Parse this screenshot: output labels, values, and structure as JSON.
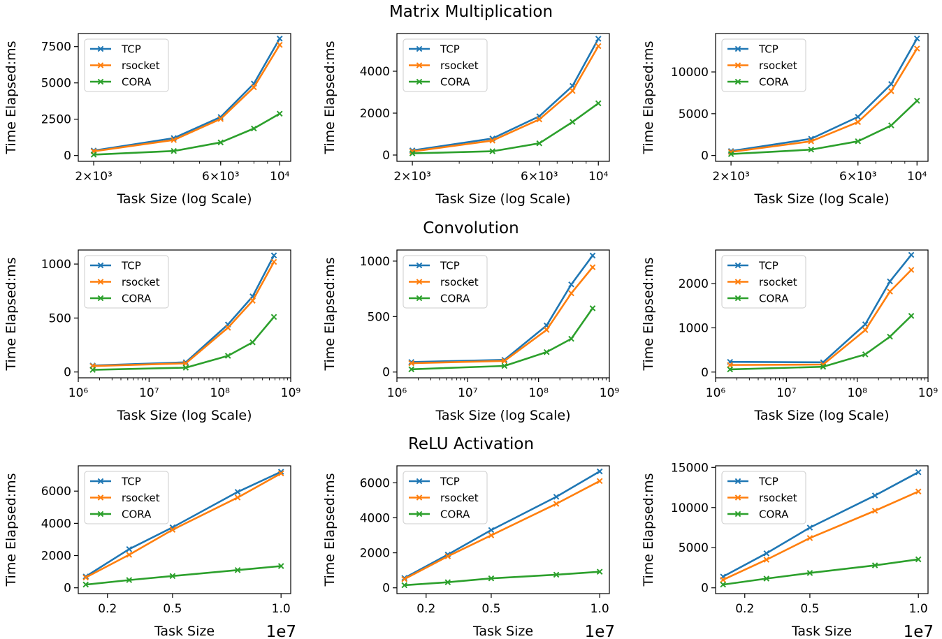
{
  "row_titles": [
    "Matrix Multiplication",
    "Convolution",
    "ReLU Activation"
  ],
  "colors": {
    "TCP": "#1f77b4",
    "rsocket": "#ff7f0e",
    "CORA": "#2ca02c"
  },
  "chart_data": [
    {
      "type": "line",
      "row": 0,
      "col": 0,
      "xscale": "log",
      "xlim": [
        1750,
        11000
      ],
      "ylim": [
        -400,
        8400
      ],
      "xticks": [
        {
          "v": 2000,
          "label": "2×10³"
        },
        {
          "v": 6000,
          "label": "6×10³"
        },
        {
          "v": 10000,
          "label": "10⁴"
        }
      ],
      "yticks": [
        {
          "v": 0,
          "label": "0"
        },
        {
          "v": 2500,
          "label": "2500"
        },
        {
          "v": 5000,
          "label": "5000"
        },
        {
          "v": 7500,
          "label": "7500"
        }
      ],
      "xlabel": "Task Size (log Scale)",
      "ylabel": "Time Elapsed:ms",
      "legend": "top-left",
      "x": [
        2000,
        4000,
        6000,
        8000,
        10000
      ],
      "series": [
        {
          "name": "TCP",
          "values": [
            340,
            1200,
            2650,
            4950,
            8050
          ]
        },
        {
          "name": "rsocket",
          "values": [
            290,
            1070,
            2520,
            4700,
            7620
          ]
        },
        {
          "name": "CORA",
          "values": [
            60,
            310,
            900,
            1860,
            2880
          ]
        }
      ]
    },
    {
      "type": "line",
      "row": 0,
      "col": 1,
      "xscale": "log",
      "xlim": [
        1750,
        11000
      ],
      "ylim": [
        -300,
        5800
      ],
      "xticks": [
        {
          "v": 2000,
          "label": "2×10³"
        },
        {
          "v": 6000,
          "label": "6×10³"
        },
        {
          "v": 10000,
          "label": "10⁴"
        }
      ],
      "yticks": [
        {
          "v": 0,
          "label": "0"
        },
        {
          "v": 2000,
          "label": "2000"
        },
        {
          "v": 4000,
          "label": "4000"
        }
      ],
      "xlabel": "Task Size (log Scale)",
      "ylabel": "Time Elapsed:ms",
      "legend": "top-left",
      "x": [
        2000,
        4000,
        6000,
        8000,
        10000
      ],
      "series": [
        {
          "name": "TCP",
          "values": [
            220,
            790,
            1850,
            3300,
            5550
          ]
        },
        {
          "name": "rsocket",
          "values": [
            170,
            690,
            1700,
            3060,
            5200
          ]
        },
        {
          "name": "CORA",
          "values": [
            80,
            180,
            560,
            1580,
            2470
          ]
        }
      ]
    },
    {
      "type": "line",
      "row": 0,
      "col": 2,
      "xscale": "log",
      "xlim": [
        1750,
        11000
      ],
      "ylim": [
        -700,
        14600
      ],
      "xticks": [
        {
          "v": 2000,
          "label": "2×10³"
        },
        {
          "v": 6000,
          "label": "6×10³"
        },
        {
          "v": 10000,
          "label": "10⁴"
        }
      ],
      "yticks": [
        {
          "v": 0,
          "label": "0"
        },
        {
          "v": 5000,
          "label": "5000"
        },
        {
          "v": 10000,
          "label": "10000"
        }
      ],
      "xlabel": "Task Size (log Scale)",
      "ylabel": "Time Elapsed:ms",
      "legend": "top-left",
      "x": [
        2000,
        4000,
        6000,
        8000,
        10000
      ],
      "series": [
        {
          "name": "TCP",
          "values": [
            530,
            2000,
            4620,
            8550,
            14000
          ]
        },
        {
          "name": "rsocket",
          "values": [
            420,
            1700,
            4000,
            7700,
            12800
          ]
        },
        {
          "name": "CORA",
          "values": [
            170,
            700,
            1700,
            3600,
            6550
          ]
        }
      ]
    },
    {
      "type": "line",
      "row": 1,
      "col": 0,
      "xscale": "log",
      "xlim": [
        1000000,
        1000000000
      ],
      "ylim": [
        -54,
        1130
      ],
      "xticks": [
        {
          "v": 1000000,
          "label": "10⁶"
        },
        {
          "v": 10000000,
          "label": "10⁷"
        },
        {
          "v": 100000000,
          "label": "10⁸"
        },
        {
          "v": 1000000000,
          "label": "10⁹"
        }
      ],
      "yticks": [
        {
          "v": 0,
          "label": "0"
        },
        {
          "v": 500,
          "label": "500"
        },
        {
          "v": 1000,
          "label": "1000"
        }
      ],
      "xlabel": "Task Size (log Scale)",
      "ylabel": "Time Elapsed:ms",
      "legend": "top-left",
      "x": [
        1600000,
        33000000,
        130000000,
        290000000,
        580000000
      ],
      "series": [
        {
          "name": "TCP",
          "values": [
            60,
            90,
            440,
            700,
            1080
          ]
        },
        {
          "name": "rsocket",
          "values": [
            55,
            80,
            410,
            660,
            1020
          ]
        },
        {
          "name": "CORA",
          "values": [
            20,
            40,
            150,
            275,
            510
          ]
        }
      ]
    },
    {
      "type": "line",
      "row": 1,
      "col": 1,
      "xscale": "log",
      "xlim": [
        1000000,
        1000000000
      ],
      "ylim": [
        -52,
        1100
      ],
      "xticks": [
        {
          "v": 1000000,
          "label": "10⁶"
        },
        {
          "v": 10000000,
          "label": "10⁷"
        },
        {
          "v": 100000000,
          "label": "10⁸"
        },
        {
          "v": 1000000000,
          "label": "10⁹"
        }
      ],
      "yticks": [
        {
          "v": 0,
          "label": "0"
        },
        {
          "v": 500,
          "label": "500"
        },
        {
          "v": 1000,
          "label": "1000"
        }
      ],
      "xlabel": "Task Size (log Scale)",
      "ylabel": "Time Elapsed:ms",
      "legend": "top-left",
      "x": [
        1600000,
        33000000,
        130000000,
        290000000,
        580000000
      ],
      "series": [
        {
          "name": "TCP",
          "values": [
            90,
            110,
            420,
            790,
            1050
          ]
        },
        {
          "name": "rsocket",
          "values": [
            80,
            100,
            380,
            710,
            945
          ]
        },
        {
          "name": "CORA",
          "values": [
            25,
            55,
            180,
            300,
            575
          ]
        }
      ]
    },
    {
      "type": "line",
      "row": 1,
      "col": 2,
      "xscale": "log",
      "xlim": [
        1000000,
        1000000000
      ],
      "ylim": [
        -130,
        2760
      ],
      "xticks": [
        {
          "v": 1000000,
          "label": "10⁶"
        },
        {
          "v": 10000000,
          "label": "10⁷"
        },
        {
          "v": 100000000,
          "label": "10⁸"
        },
        {
          "v": 1000000000,
          "label": "10⁹"
        }
      ],
      "yticks": [
        {
          "v": 0,
          "label": "0"
        },
        {
          "v": 1000,
          "label": "1000"
        },
        {
          "v": 2000,
          "label": "2000"
        }
      ],
      "xlabel": "Task Size (log Scale)",
      "ylabel": "Time Elapsed:ms",
      "legend": "top-left",
      "x": [
        1600000,
        33000000,
        130000000,
        290000000,
        580000000
      ],
      "series": [
        {
          "name": "TCP",
          "values": [
            230,
            220,
            1080,
            2050,
            2650
          ]
        },
        {
          "name": "rsocket",
          "values": [
            160,
            170,
            950,
            1820,
            2310
          ]
        },
        {
          "name": "CORA",
          "values": [
            60,
            120,
            400,
            800,
            1270
          ]
        }
      ]
    },
    {
      "type": "line",
      "row": 2,
      "col": 0,
      "xscale": "linear",
      "offset_text": "1e7",
      "xlim": [
        0.0655,
        1.0445
      ],
      "ylim": [
        -360,
        7570
      ],
      "xticks": [
        {
          "v": 0.2,
          "label": "0.2"
        },
        {
          "v": 0.5,
          "label": "0.5"
        },
        {
          "v": 1.0,
          "label": "1.0"
        }
      ],
      "yticks": [
        {
          "v": 0,
          "label": "0"
        },
        {
          "v": 2000,
          "label": "2000"
        },
        {
          "v": 4000,
          "label": "4000"
        },
        {
          "v": 6000,
          "label": "6000"
        }
      ],
      "xlabel": "Task Size",
      "ylabel": "Time Elapsed:ms",
      "legend": "top-left",
      "x": [
        0.1,
        0.3,
        0.5,
        0.8,
        1.0
      ],
      "series": [
        {
          "name": "TCP",
          "values": [
            700,
            2400,
            3750,
            5950,
            7200
          ]
        },
        {
          "name": "rsocket",
          "values": [
            640,
            2050,
            3600,
            5600,
            7100
          ]
        },
        {
          "name": "CORA",
          "values": [
            200,
            480,
            730,
            1100,
            1350
          ]
        }
      ]
    },
    {
      "type": "line",
      "row": 2,
      "col": 1,
      "xscale": "linear",
      "offset_text": "1e7",
      "xlim": [
        0.0655,
        1.0445
      ],
      "ylim": [
        -330,
        6970
      ],
      "xticks": [
        {
          "v": 0.2,
          "label": "0.2"
        },
        {
          "v": 0.5,
          "label": "0.5"
        },
        {
          "v": 1.0,
          "label": "1.0"
        }
      ],
      "yticks": [
        {
          "v": 0,
          "label": "0"
        },
        {
          "v": 2000,
          "label": "2000"
        },
        {
          "v": 4000,
          "label": "4000"
        },
        {
          "v": 6000,
          "label": "6000"
        }
      ],
      "xlabel": "Task Size",
      "ylabel": "Time Elapsed:ms",
      "legend": "top-left",
      "x": [
        0.1,
        0.3,
        0.5,
        0.8,
        1.0
      ],
      "series": [
        {
          "name": "TCP",
          "values": [
            560,
            1900,
            3300,
            5200,
            6650
          ]
        },
        {
          "name": "rsocket",
          "values": [
            500,
            1800,
            3000,
            4800,
            6100
          ]
        },
        {
          "name": "CORA",
          "values": [
            150,
            320,
            540,
            750,
            920
          ]
        }
      ]
    },
    {
      "type": "line",
      "row": 2,
      "col": 2,
      "xscale": "linear",
      "offset_text": "1e7",
      "xlim": [
        0.0655,
        1.0445
      ],
      "ylim": [
        -720,
        15200
      ],
      "xticks": [
        {
          "v": 0.2,
          "label": "0.2"
        },
        {
          "v": 0.5,
          "label": "0.5"
        },
        {
          "v": 1.0,
          "label": "1.0"
        }
      ],
      "yticks": [
        {
          "v": 0,
          "label": "0"
        },
        {
          "v": 5000,
          "label": "5000"
        },
        {
          "v": 10000,
          "label": "10000"
        },
        {
          "v": 15000,
          "label": "15000"
        }
      ],
      "xlabel": "Task Size",
      "ylabel": "Time Elapsed:ms",
      "legend": "top-left",
      "x": [
        0.1,
        0.3,
        0.5,
        0.8,
        1.0
      ],
      "series": [
        {
          "name": "TCP",
          "values": [
            1400,
            4300,
            7500,
            11500,
            14400
          ]
        },
        {
          "name": "rsocket",
          "values": [
            1000,
            3500,
            6200,
            9600,
            12000
          ]
        },
        {
          "name": "CORA",
          "values": [
            400,
            1150,
            1850,
            2800,
            3550
          ]
        }
      ]
    }
  ]
}
